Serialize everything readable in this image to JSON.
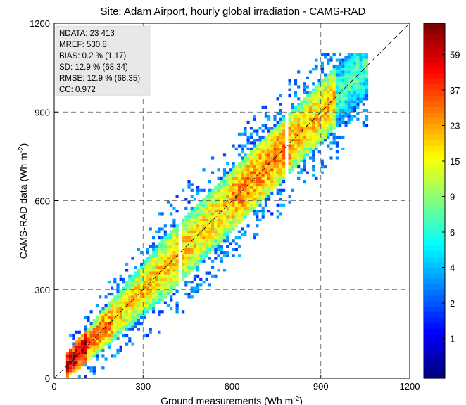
{
  "chart_data": {
    "type": "heatmap",
    "title": "Site: Adam Airport, hourly global irradiation - CAMS-RAD",
    "xlabel": "Ground measurements (Wh m",
    "xlabel_sup": "-2",
    "xlabel_end": ")",
    "ylabel": "CAMS-RAD data (Wh m",
    "ylabel_sup": "-2",
    "ylabel_end": ")",
    "xlim": [
      0,
      1200
    ],
    "ylim": [
      0,
      1200
    ],
    "xticks": [
      0,
      300,
      600,
      900,
      1200
    ],
    "yticks": [
      0,
      300,
      600,
      900,
      1200
    ],
    "grid": "dashed at 300, 600, 900",
    "reference_line": "1:1 diagonal, dashed",
    "stats": [
      "NDATA: 23  413",
      "MREF:  530.8",
      "BIAS:  0.2 % (1.17)",
      "SD:  12.9 % (68.34)",
      "RMSE: 12.9 % (68.35)",
      "CC:    0.972"
    ],
    "stats_box_position": "top-left",
    "colorbar": {
      "position": "right",
      "scale": "log",
      "tick_labels": [
        "1",
        "2",
        "4",
        "6",
        "9",
        "15",
        "23",
        "37",
        "59"
      ],
      "colors": [
        "#00008f",
        "#0000ff",
        "#0080ff",
        "#00ffff",
        "#80ff80",
        "#ffff00",
        "#ff8000",
        "#ff0000",
        "#800000"
      ]
    },
    "density_model": {
      "description": "Point density of CAMS-RAD vs ground hourly irradiation, concentrated along the 1:1 line",
      "x_range": [
        40,
        1050
      ],
      "spread_sd": 68.34,
      "peak_count": 59
    }
  }
}
